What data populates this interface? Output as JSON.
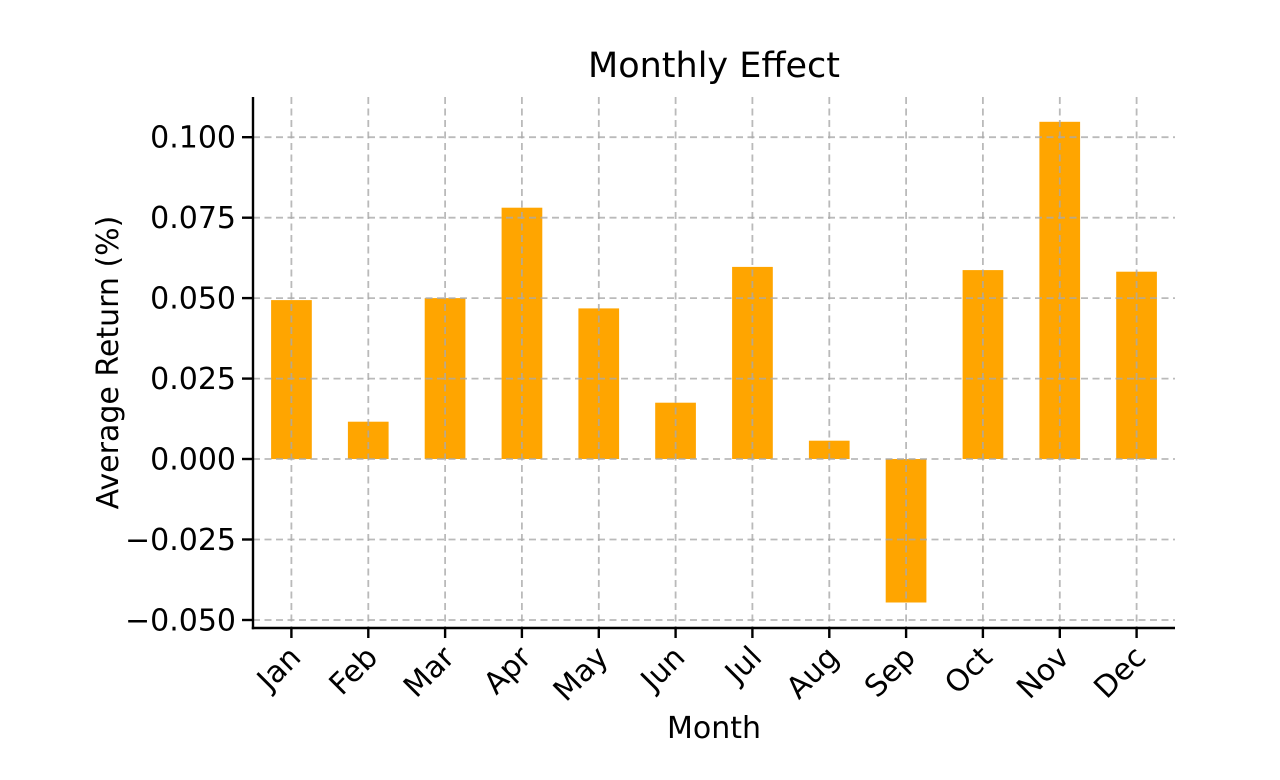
{
  "chart_data": {
    "type": "bar",
    "title": "Monthly Effect",
    "xlabel": "Month",
    "ylabel": "Average Return (%)",
    "categories": [
      "Jan",
      "Feb",
      "Mar",
      "Apr",
      "May",
      "Jun",
      "Jul",
      "Aug",
      "Sep",
      "Oct",
      "Nov",
      "Dec"
    ],
    "values": [
      0.0494,
      0.0116,
      0.05,
      0.0781,
      0.0468,
      0.0175,
      0.0597,
      0.0057,
      -0.0446,
      0.0587,
      0.1048,
      0.0582
    ],
    "yticks": [
      0.1,
      0.075,
      0.05,
      0.025,
      0.0,
      -0.025,
      -0.05
    ],
    "ytick_labels": [
      "0.100",
      "0.075",
      "0.050",
      "0.025",
      "0.000",
      "−0.025",
      "−0.050"
    ],
    "ylim": [
      -0.0525,
      0.1125
    ],
    "x_tick_rotation_deg": 45,
    "grid": "on",
    "grid_style": "dashed",
    "legend_position": "none",
    "bar_color": "#FFA500",
    "grid_color": "#a9a9a9",
    "axis_color": "#000000",
    "background_color": "#ffffff"
  }
}
